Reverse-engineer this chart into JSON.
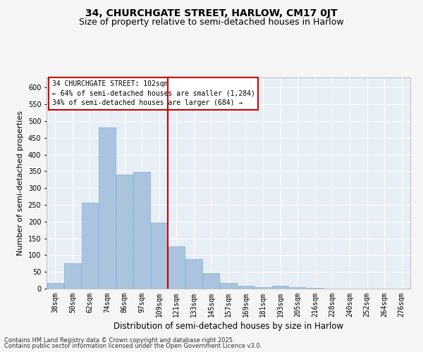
{
  "title": "34, CHURCHGATE STREET, HARLOW, CM17 0JT",
  "subtitle": "Size of property relative to semi-detached houses in Harlow",
  "xlabel": "Distribution of semi-detached houses by size in Harlow",
  "ylabel": "Number of semi-detached properties",
  "categories": [
    "38sqm",
    "50sqm",
    "62sqm",
    "74sqm",
    "86sqm",
    "97sqm",
    "109sqm",
    "121sqm",
    "133sqm",
    "145sqm",
    "157sqm",
    "169sqm",
    "181sqm",
    "193sqm",
    "205sqm",
    "216sqm",
    "228sqm",
    "240sqm",
    "252sqm",
    "264sqm",
    "276sqm"
  ],
  "values": [
    17,
    75,
    256,
    480,
    341,
    348,
    198,
    125,
    88,
    47,
    17,
    8,
    5,
    8,
    5,
    2,
    1,
    1,
    0,
    0,
    1
  ],
  "bar_color": "#aac4df",
  "bar_edgecolor": "#7bafd4",
  "vline_color": "#cc0000",
  "annotation_title": "34 CHURCHGATE STREET: 102sqm",
  "annotation_line1": "← 64% of semi-detached houses are smaller (1,284)",
  "annotation_line2": "34% of semi-detached houses are larger (684) →",
  "annotation_box_edgecolor": "#cc0000",
  "ylim": [
    0,
    630
  ],
  "yticks": [
    0,
    50,
    100,
    150,
    200,
    250,
    300,
    350,
    400,
    450,
    500,
    550,
    600
  ],
  "footnote1": "Contains HM Land Registry data © Crown copyright and database right 2025.",
  "footnote2": "Contains public sector information licensed under the Open Government Licence v3.0.",
  "bg_color": "#e8eef5",
  "fig_bg_color": "#f5f5f5",
  "grid_color": "#ffffff",
  "title_fontsize": 10,
  "subtitle_fontsize": 9,
  "tick_fontsize": 7,
  "ylabel_fontsize": 8,
  "xlabel_fontsize": 8.5,
  "annotation_fontsize": 7,
  "footnote_fontsize": 6
}
